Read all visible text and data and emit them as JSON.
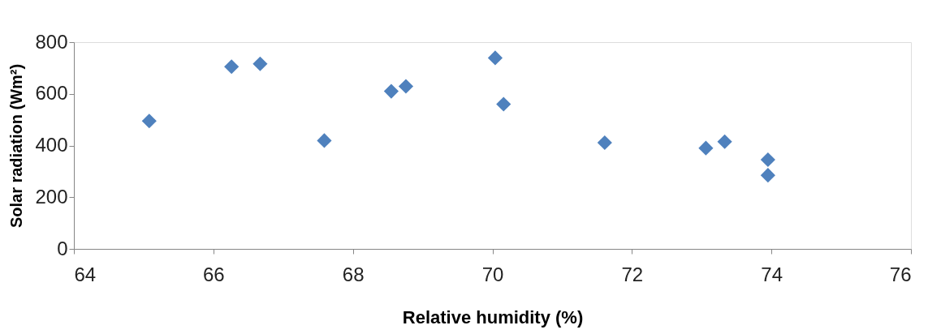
{
  "chart_data": {
    "type": "scatter",
    "xlabel": "Relative humidity (%)",
    "ylabel": "Solar radiation (Wm²)",
    "x": [
      65.08,
      66.26,
      66.67,
      67.59,
      68.55,
      68.76,
      70.04,
      70.16,
      71.61,
      73.06,
      73.33,
      73.95,
      73.95
    ],
    "series": [
      {
        "color": "#4f81bd",
        "values": [
          495,
          705,
          716,
          419,
          610,
          629,
          739,
          560,
          411,
          390,
          415,
          345,
          285
        ]
      }
    ],
    "xlim": [
      64,
      76
    ],
    "xticks": [
      64,
      66,
      68,
      70,
      72,
      74,
      76
    ],
    "ylim": [
      0,
      800
    ],
    "yticks": [
      0,
      200,
      400,
      600,
      800
    ],
    "marker": "diamond",
    "grid": false,
    "legend": false
  }
}
